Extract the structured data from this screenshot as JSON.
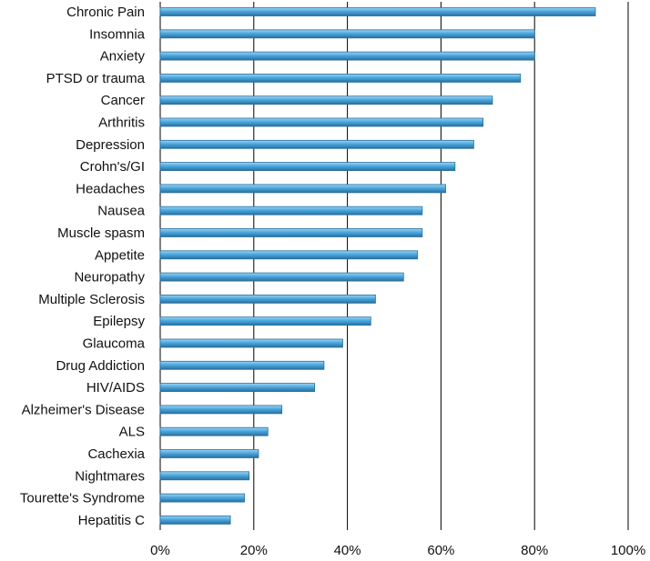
{
  "chart_data": {
    "type": "bar",
    "orientation": "horizontal",
    "categories": [
      "Chronic Pain",
      "Insomnia",
      "Anxiety",
      "PTSD or trauma",
      "Cancer",
      "Arthritis",
      "Depression",
      "Crohn's/GI",
      "Headaches",
      "Nausea",
      "Muscle spasm",
      "Appetite",
      "Neuropathy",
      "Multiple Sclerosis",
      "Epilepsy",
      "Glaucoma",
      "Drug Addiction",
      "HIV/AIDS",
      "Alzheimer's Disease",
      "ALS",
      "Cachexia",
      "Nightmares",
      "Tourette's Syndrome",
      "Hepatitis C"
    ],
    "values": [
      93,
      80,
      80,
      77,
      71,
      69,
      67,
      63,
      61,
      56,
      56,
      55,
      52,
      46,
      45,
      39,
      35,
      33,
      26,
      23,
      21,
      19,
      18,
      15
    ],
    "title": "",
    "xlabel": "",
    "ylabel": "",
    "xlim": [
      0,
      100
    ],
    "xticks": [
      "0%",
      "20%",
      "40%",
      "60%",
      "80%",
      "100%"
    ],
    "grid": "vertical",
    "legend": "none",
    "bar_color": "#4aa7de",
    "bar_edge_color": "#2a6f9e"
  }
}
